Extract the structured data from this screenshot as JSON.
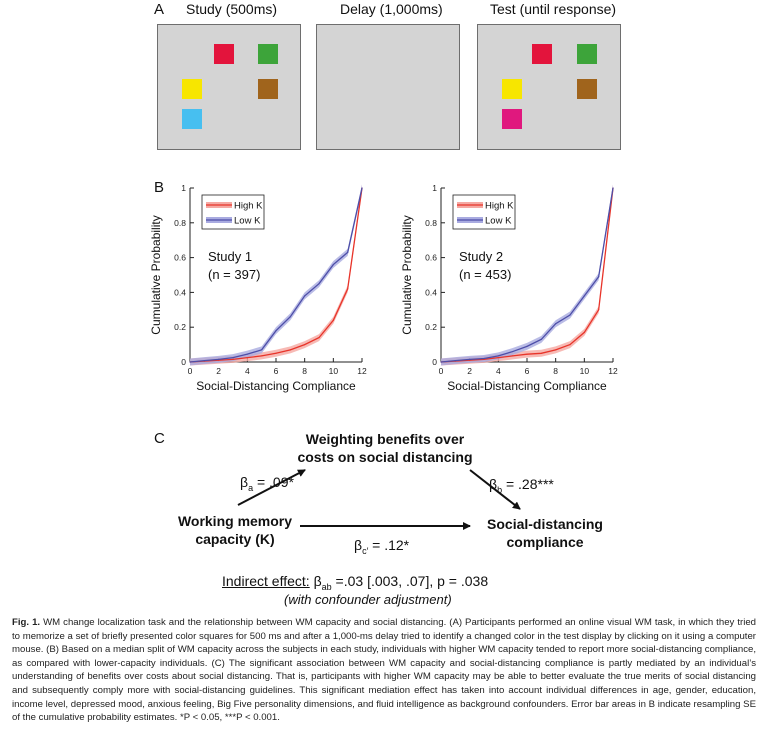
{
  "panelA": {
    "letter": "A",
    "titles": [
      "Study (500ms)",
      "Delay (1,000ms)",
      "Test (until response)"
    ],
    "colors": {
      "red": "#e3143c",
      "green": "#3da43a",
      "yellow": "#f7e600",
      "brown": "#a0641c",
      "cyan": "#47bff0",
      "magenta": "#e0187e",
      "background": "#d4d4d4"
    }
  },
  "panelB": {
    "letter": "B",
    "ylabel": "Cumulative Probability",
    "xlabel": "Social-Distancing Compliance",
    "xticks": [
      "0",
      "2",
      "4",
      "6",
      "8",
      "10",
      "12"
    ],
    "yticks": [
      "0",
      "0.2",
      "0.4",
      "0.6",
      "0.8",
      "1"
    ],
    "legend": [
      "High K",
      "Low K"
    ],
    "studies": [
      {
        "title": "Study 1",
        "n": "(n = 397)"
      },
      {
        "title": "Study 2",
        "n": "(n = 453)"
      }
    ]
  },
  "chart_data": [
    {
      "type": "line",
      "title": "Study 1",
      "subtitle": "(n = 397)",
      "xlabel": "Social-Distancing Compliance",
      "ylabel": "Cumulative Probability",
      "xlim": [
        0,
        12
      ],
      "ylim": [
        0,
        1
      ],
      "legend_position": "top-left",
      "x": [
        0,
        1,
        2,
        3,
        4,
        5,
        6,
        7,
        8,
        9,
        10,
        11,
        12
      ],
      "series": [
        {
          "name": "High K",
          "color": "#e8342a",
          "band": "#f5a9a3",
          "values": [
            0,
            0.005,
            0.01,
            0.015,
            0.025,
            0.035,
            0.05,
            0.07,
            0.1,
            0.14,
            0.24,
            0.42,
            1.0
          ]
        },
        {
          "name": "Low K",
          "color": "#4d4ea8",
          "band": "#a9abe0",
          "values": [
            0,
            0.008,
            0.015,
            0.025,
            0.045,
            0.07,
            0.18,
            0.26,
            0.38,
            0.45,
            0.56,
            0.63,
            1.0
          ]
        }
      ]
    },
    {
      "type": "line",
      "title": "Study 2",
      "subtitle": "(n = 453)",
      "xlabel": "Social-Distancing Compliance",
      "ylabel": "Cumulative Probability",
      "xlim": [
        0,
        12
      ],
      "ylim": [
        0,
        1
      ],
      "legend_position": "top-left",
      "x": [
        0,
        1,
        2,
        3,
        4,
        5,
        6,
        7,
        8,
        9,
        10,
        11,
        12
      ],
      "series": [
        {
          "name": "High K",
          "color": "#e8342a",
          "band": "#f5a9a3",
          "values": [
            0,
            0.005,
            0.01,
            0.015,
            0.025,
            0.035,
            0.045,
            0.05,
            0.07,
            0.1,
            0.17,
            0.3,
            1.0
          ]
        },
        {
          "name": "Low K",
          "color": "#4d4ea8",
          "band": "#a9abe0",
          "values": [
            0,
            0.008,
            0.015,
            0.02,
            0.035,
            0.06,
            0.09,
            0.13,
            0.22,
            0.27,
            0.38,
            0.49,
            1.0
          ]
        }
      ]
    }
  ],
  "panelC": {
    "letter": "C",
    "mediator": [
      "Weighting benefits over",
      "costs on social distancing"
    ],
    "predictor": [
      "Working memory",
      "capacity (K)"
    ],
    "outcome": [
      "Social-distancing",
      "compliance"
    ],
    "beta_a": {
      "sym": "β",
      "sub": "a",
      "val": " = .09*"
    },
    "beta_b": {
      "sym": "β",
      "sub": "b",
      "val": " = .28***"
    },
    "beta_c": {
      "sym": "β",
      "sub": "c′",
      "val": " = .12*"
    },
    "indirect_label": "Indirect effect:",
    "indirect_sym": "β",
    "indirect_sub": "ab",
    "indirect_val": " =.03 [.003, .07], p = .038",
    "adjust": "(with confounder adjustment)"
  },
  "caption": {
    "fig": "Fig. 1.",
    "text": "  WM change localization task and the relationship between WM capacity and social distancing. (A) Participants performed an online visual WM task, in which they tried to memorize a set of briefly presented color squares for 500 ms and after a 1,000-ms delay tried to identify a changed color in the test display by clicking on it using a computer mouse. (B) Based on a median split of WM capacity across the subjects in each study, individuals with higher WM capacity tended to report more social-distancing compliance, as compared with lower-capacity individuals. (C) The significant association between WM capacity and social-distancing compliance is partly mediated by an individual’s understanding of benefits over costs about social distancing. That is, participants with higher WM capacity may be able to better evaluate the true merits of social distancing and subsequently comply more with social-distancing guidelines. This significant mediation effect has taken into account individual differences in age, gender, education, income level, depressed mood, anxious feeling, Big Five personality dimensions, and fluid intelligence as background confounders. Error bar areas in B indicate resampling SE of the cumulative probability estimates. *P < 0.05, ***P < 0.001."
  }
}
